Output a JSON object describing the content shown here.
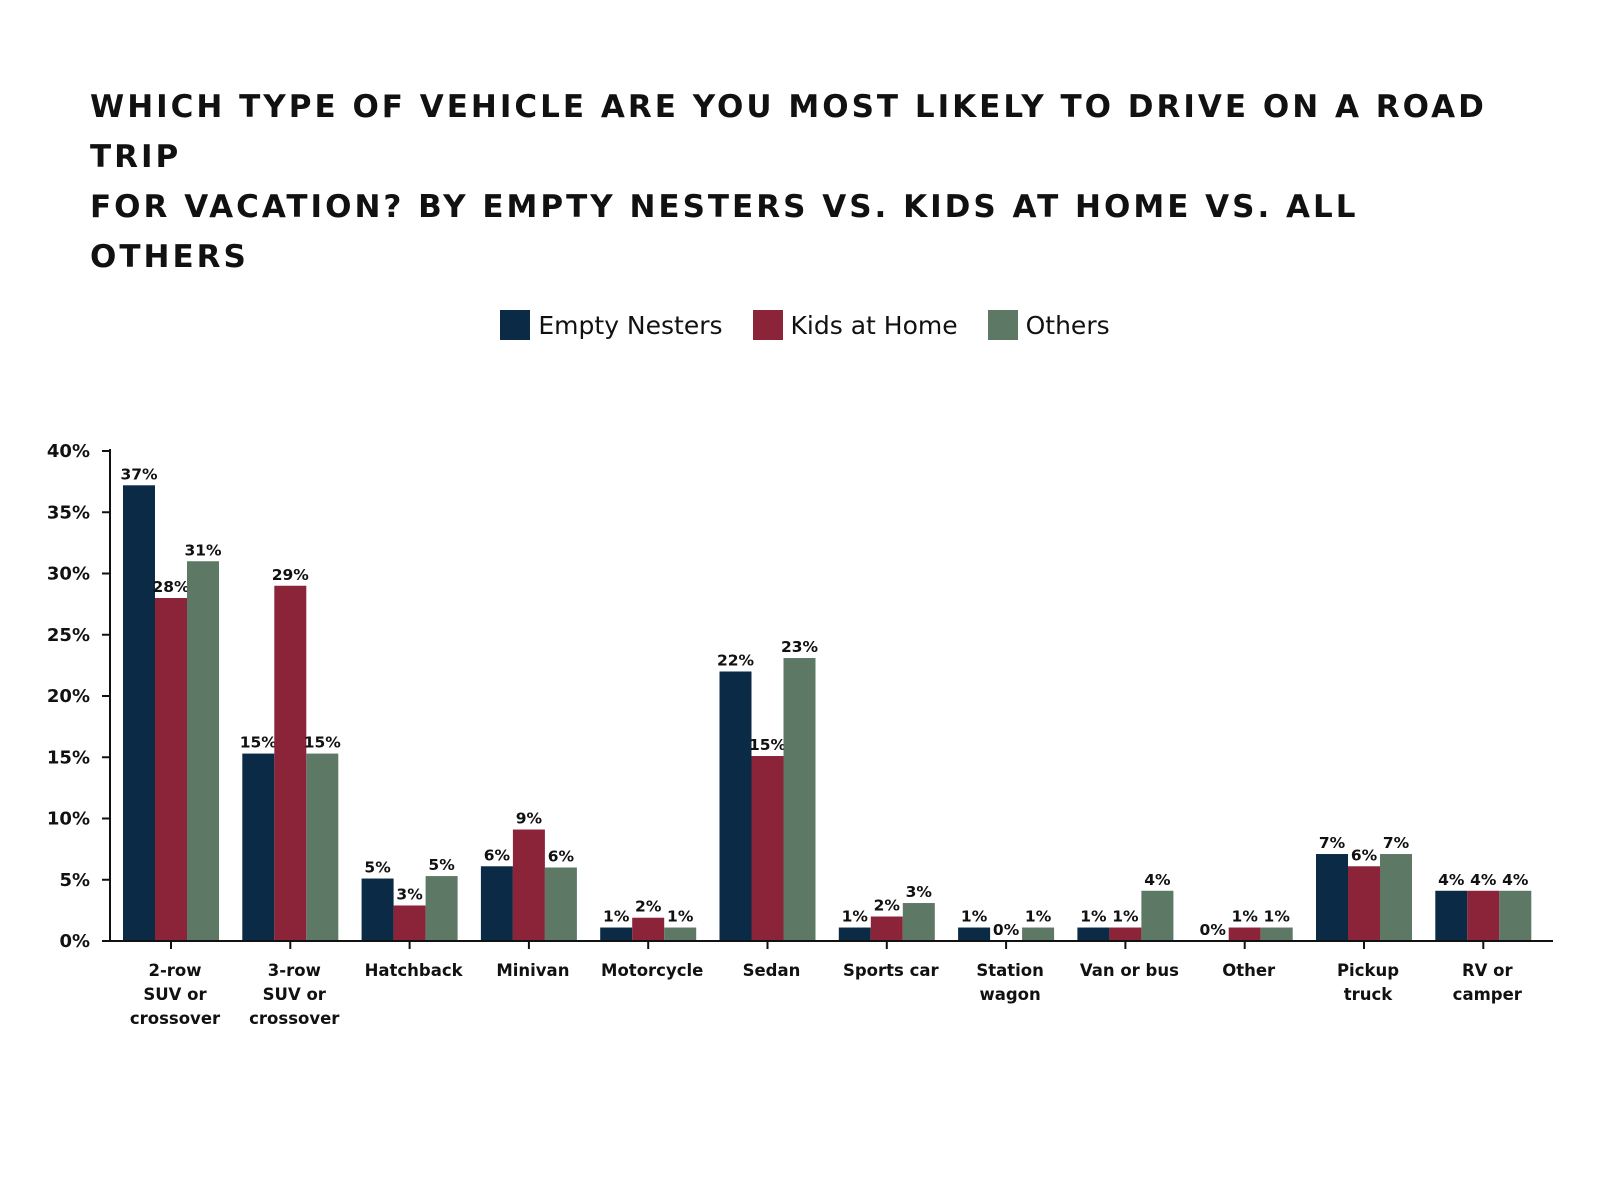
{
  "title_lines": [
    "WHICH TYPE OF VEHICLE ARE YOU MOST LIKELY TO DRIVE ON A ROAD TRIP",
    "FOR VACATION? BY EMPTY NESTERS VS. KIDS AT HOME VS. ALL OTHERS"
  ],
  "chart_data": {
    "type": "bar",
    "title": "WHICH TYPE OF VEHICLE ARE YOU MOST LIKELY TO DRIVE ON A ROAD TRIP FOR VACATION? BY EMPTY NESTERS VS. KIDS AT HOME VS. ALL OTHERS",
    "xlabel": "",
    "ylabel": "",
    "ylim": [
      0,
      40
    ],
    "y_ticks": [
      0,
      5,
      10,
      15,
      20,
      25,
      30,
      35,
      40
    ],
    "y_tick_labels": [
      "0%",
      "5%",
      "10%",
      "15%",
      "20%",
      "25%",
      "30%",
      "35%",
      "40%"
    ],
    "grid": false,
    "legend_position": "top-center",
    "categories": [
      "2-row SUV or crossover",
      "3-row SUV or crossover",
      "Hatchback",
      "Minivan",
      "Motorcycle",
      "Sedan",
      "Sports car",
      "Station wagon",
      "Van or bus",
      "Other",
      "Pickup truck",
      "RV or camper"
    ],
    "category_label_lines": [
      [
        "2-row",
        "SUV or",
        "crossover"
      ],
      [
        "3-row",
        "SUV or",
        "crossover"
      ],
      [
        "Hatchback"
      ],
      [
        "Minivan"
      ],
      [
        "Motorcycle"
      ],
      [
        "Sedan"
      ],
      [
        "Sports car"
      ],
      [
        "Station",
        "wagon"
      ],
      [
        "Van or bus"
      ],
      [
        "Other"
      ],
      [
        "Pickup",
        "truck"
      ],
      [
        "RV or",
        "camper"
      ]
    ],
    "series": [
      {
        "name": "Empty Nesters",
        "color": "#0b2a45",
        "values": [
          37.2,
          15.3,
          5.1,
          6.1,
          1.1,
          22.0,
          1.1,
          1.1,
          1.1,
          0.0,
          7.1,
          4.1
        ],
        "labels": [
          "37%",
          "15%",
          "5%",
          "6%",
          "1%",
          "22%",
          "1%",
          "1%",
          "1%",
          "0%",
          "7%",
          "4%"
        ]
      },
      {
        "name": "Kids at Home",
        "color": "#8b2438",
        "values": [
          28.0,
          29.0,
          2.9,
          9.1,
          1.9,
          15.1,
          2.0,
          0.0,
          1.1,
          1.1,
          6.1,
          4.1
        ],
        "labels": [
          "28%",
          "29%",
          "3%",
          "9%",
          "2%",
          "15%",
          "2%",
          "0%",
          "1%",
          "1%",
          "6%",
          "4%"
        ]
      },
      {
        "name": "Others",
        "color": "#5e7866",
        "values": [
          31.0,
          15.3,
          5.3,
          6.0,
          1.1,
          23.1,
          3.1,
          1.1,
          4.1,
          1.1,
          7.1,
          4.1
        ],
        "labels": [
          "31%",
          "15%",
          "5%",
          "6%",
          "1%",
          "23%",
          "3%",
          "1%",
          "4%",
          "1%",
          "7%",
          "4%"
        ]
      }
    ]
  }
}
